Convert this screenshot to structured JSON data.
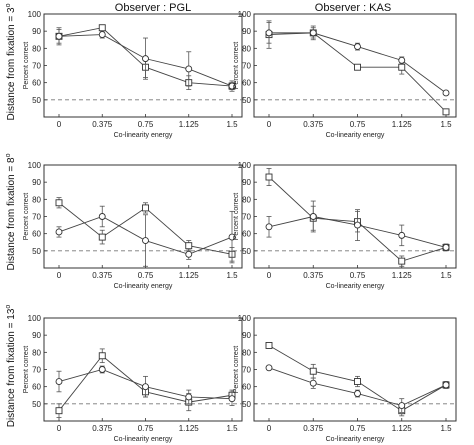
{
  "figure": {
    "column_titles": [
      "Observer : PGL",
      "Observer : KAS"
    ],
    "row_titles": [
      [
        "Distance from fixation = 3",
        "o"
      ],
      [
        "Distance from fixation = 8",
        "o"
      ],
      [
        "Distance from fixation = 13",
        "o"
      ]
    ]
  },
  "chart_data": [
    {
      "type": "line",
      "observer": "PGL",
      "distance": "3",
      "xlabel": "Co-linearity energy",
      "ylabel": "Percent correct",
      "x": [
        0,
        0.375,
        0.75,
        1.125,
        1.5
      ],
      "x_tick_labels": [
        "0",
        "0.375",
        "0.75",
        "1.125",
        "1.5"
      ],
      "ylim": [
        40,
        100
      ],
      "y_ticks": [
        50,
        60,
        70,
        80,
        90,
        100
      ],
      "chance": 50,
      "series": [
        {
          "marker": "square",
          "values": [
            87,
            92,
            69,
            60,
            58
          ],
          "err": [
            4,
            1,
            6,
            4,
            2
          ]
        },
        {
          "marker": "circle",
          "values": [
            87,
            88,
            74,
            68,
            58
          ],
          "err": [
            5,
            2,
            12,
            10,
            3
          ]
        }
      ]
    },
    {
      "type": "line",
      "observer": "KAS",
      "distance": "3",
      "xlabel": "Co-linearity energy",
      "ylabel": "Percent correct",
      "x": [
        0,
        0.375,
        0.75,
        1.125,
        1.5
      ],
      "x_tick_labels": [
        "0",
        "0.375",
        "0.75",
        "1.125",
        "1.5"
      ],
      "ylim": [
        40,
        100
      ],
      "y_ticks": [
        50,
        60,
        70,
        80,
        90,
        100
      ],
      "chance": 50,
      "series": [
        {
          "marker": "square",
          "values": [
            88,
            89,
            69,
            69,
            43
          ],
          "err": [
            8,
            4,
            1,
            4,
            1
          ]
        },
        {
          "marker": "circle",
          "values": [
            89,
            89,
            81,
            73,
            54
          ],
          "err": [
            6,
            3,
            2,
            2,
            1
          ]
        }
      ]
    },
    {
      "type": "line",
      "observer": "PGL",
      "distance": "8",
      "xlabel": "Co-linearity energy",
      "ylabel": "Percent correct",
      "x": [
        0,
        0.375,
        0.75,
        1.125,
        1.5
      ],
      "x_tick_labels": [
        "0",
        "0.375",
        "0.75",
        "1.125",
        "1.5"
      ],
      "ylim": [
        40,
        100
      ],
      "y_ticks": [
        50,
        60,
        70,
        80,
        90,
        100
      ],
      "chance": 50,
      "series": [
        {
          "marker": "square",
          "values": [
            78,
            58,
            75,
            53,
            48
          ],
          "err": [
            3,
            4,
            3,
            3,
            4
          ]
        },
        {
          "marker": "circle",
          "values": [
            61,
            70,
            56,
            48,
            58
          ],
          "err": [
            3,
            6,
            15,
            3,
            15
          ]
        }
      ]
    },
    {
      "type": "line",
      "observer": "KAS",
      "distance": "8",
      "xlabel": "Co-linearity energy",
      "ylabel": "Percent correct",
      "x": [
        0,
        0.375,
        0.75,
        1.125,
        1.5
      ],
      "x_tick_labels": [
        "0",
        "0.375",
        "0.75",
        "1.125",
        "1.5"
      ],
      "ylim": [
        40,
        100
      ],
      "y_ticks": [
        50,
        60,
        70,
        80,
        90,
        100
      ],
      "chance": 50,
      "series": [
        {
          "marker": "square",
          "values": [
            93,
            69,
            67,
            44,
            52
          ],
          "err": [
            5,
            7,
            6,
            3,
            1
          ]
        },
        {
          "marker": "circle",
          "values": [
            64,
            70,
            65,
            59,
            52
          ],
          "err": [
            6,
            9,
            9,
            6,
            2
          ]
        }
      ]
    },
    {
      "type": "line",
      "observer": "PGL",
      "distance": "13",
      "xlabel": "Co-linearity energy",
      "ylabel": "Percent correct",
      "x": [
        0,
        0.375,
        0.75,
        1.125,
        1.5
      ],
      "x_tick_labels": [
        "0",
        "0.375",
        "0.75",
        "1.125",
        "1.5"
      ],
      "ylim": [
        40,
        100
      ],
      "y_ticks": [
        50,
        60,
        70,
        80,
        90,
        100
      ],
      "chance": 50,
      "series": [
        {
          "marker": "square",
          "values": [
            46,
            78,
            57,
            51,
            55
          ],
          "err": [
            4,
            4,
            3,
            5,
            3
          ]
        },
        {
          "marker": "circle",
          "values": [
            63,
            70,
            60,
            54,
            53
          ],
          "err": [
            6,
            2,
            6,
            4,
            4
          ]
        }
      ]
    },
    {
      "type": "line",
      "observer": "KAS",
      "distance": "13",
      "xlabel": "Co-linearity energy",
      "ylabel": "Percent correct",
      "x": [
        0,
        0.375,
        0.75,
        1.125,
        1.5
      ],
      "x_tick_labels": [
        "0",
        "0.375",
        "0.75",
        "1.125",
        "1.5"
      ],
      "ylim": [
        40,
        100
      ],
      "y_ticks": [
        50,
        60,
        70,
        80,
        90,
        100
      ],
      "chance": 50,
      "series": [
        {
          "marker": "square",
          "values": [
            84,
            69,
            63,
            46,
            61
          ],
          "err": [
            1,
            4,
            3,
            3,
            2
          ]
        },
        {
          "marker": "circle",
          "values": [
            71,
            62,
            56,
            49,
            61
          ],
          "err": [
            1,
            3,
            2,
            4,
            2
          ]
        }
      ]
    }
  ]
}
